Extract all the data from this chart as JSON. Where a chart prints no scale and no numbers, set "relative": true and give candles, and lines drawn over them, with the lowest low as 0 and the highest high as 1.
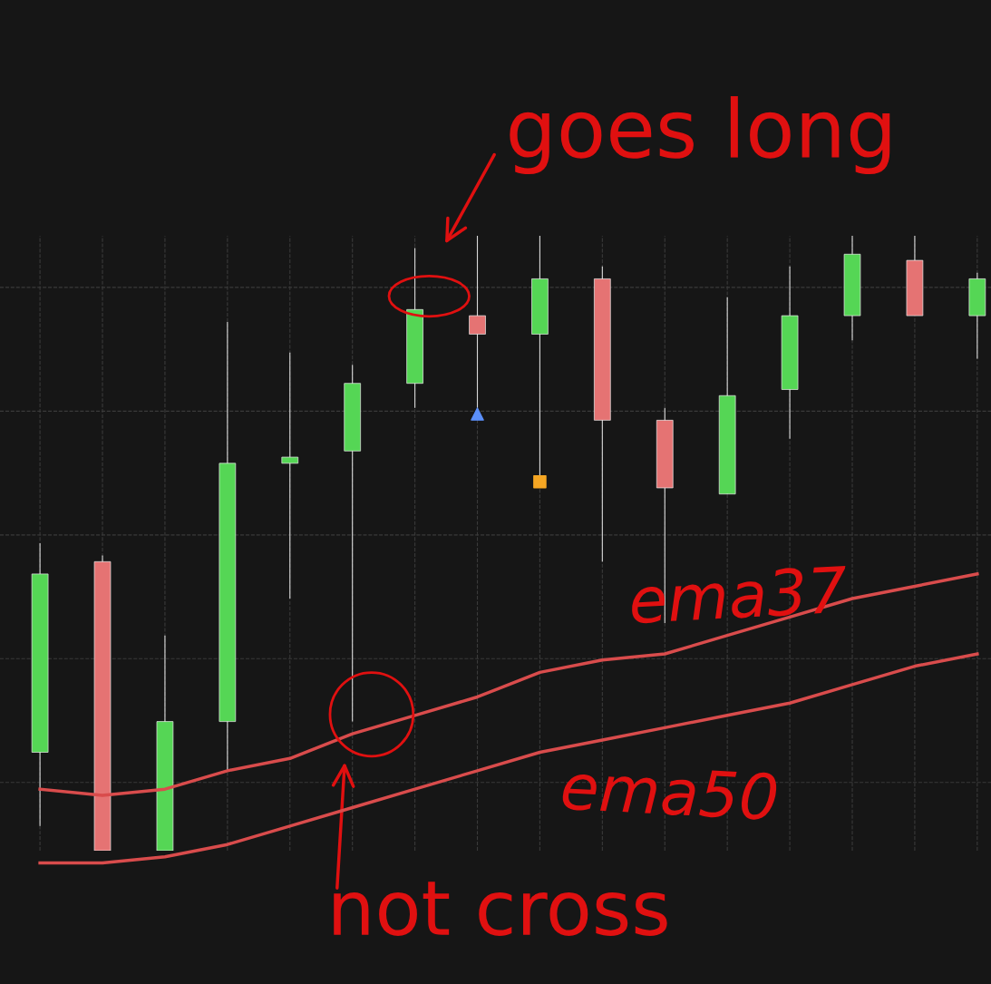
{
  "chart_data": {
    "type": "candlestick",
    "relative": true,
    "categories": [
      null,
      null,
      null,
      null,
      null,
      null,
      null,
      null,
      null,
      null,
      null,
      null,
      null,
      null,
      null,
      null
    ],
    "ohlc": [
      [
        0.16,
        0.5,
        0.04,
        0.45
      ],
      [
        0.47,
        0.48,
        0.0,
        0.0
      ],
      [
        0.0,
        0.35,
        0.0,
        0.21
      ],
      [
        0.21,
        0.86,
        0.13,
        0.63
      ],
      [
        0.63,
        0.81,
        0.41,
        0.64
      ],
      [
        0.65,
        0.79,
        0.21,
        0.76
      ],
      [
        0.76,
        0.98,
        0.72,
        0.88
      ],
      [
        0.87,
        1.0,
        0.72,
        0.84
      ],
      [
        0.84,
        1.0,
        0.61,
        0.93
      ],
      [
        0.93,
        0.95,
        0.47,
        0.7
      ],
      [
        0.7,
        0.72,
        0.37,
        0.59
      ],
      [
        0.58,
        0.9,
        0.58,
        0.74
      ],
      [
        0.75,
        0.95,
        0.67,
        0.87
      ],
      [
        0.87,
        1.0,
        0.83,
        0.97
      ],
      [
        0.96,
        1.0,
        0.87,
        0.87
      ],
      [
        0.87,
        0.94,
        0.8,
        0.93
      ]
    ],
    "series": [
      {
        "name": "ema37",
        "type": "line",
        "color": "#d94c4c",
        "values": [
          0.1,
          0.09,
          0.1,
          0.13,
          0.15,
          0.19,
          0.22,
          0.25,
          0.29,
          0.31,
          0.32,
          0.35,
          0.38,
          0.41,
          0.43,
          0.45
        ]
      },
      {
        "name": "ema50",
        "type": "line",
        "color": "#d94c4c",
        "values": [
          -0.02,
          -0.02,
          -0.01,
          0.01,
          0.04,
          0.07,
          0.1,
          0.13,
          0.16,
          0.18,
          0.2,
          0.22,
          0.24,
          0.27,
          0.3,
          0.32
        ]
      },
      {
        "type": "scatter",
        "marker": "triangle",
        "color": "#5b8ff9",
        "values": [
          null,
          null,
          null,
          null,
          null,
          null,
          null,
          0.71,
          null,
          null,
          null,
          null,
          null,
          null,
          null,
          null
        ]
      },
      {
        "type": "scatter",
        "marker": "square",
        "color": "#f5a623",
        "values": [
          null,
          null,
          null,
          null,
          null,
          null,
          null,
          null,
          0.6,
          null,
          null,
          null,
          null,
          null,
          null,
          null
        ]
      }
    ],
    "annotations": [
      "goes long",
      "not cross"
    ],
    "grid": true
  }
}
